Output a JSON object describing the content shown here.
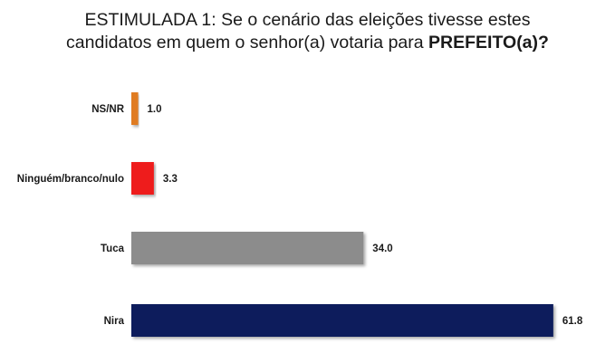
{
  "chart_data": {
    "type": "bar",
    "orientation": "horizontal",
    "title_line1": "ESTIMULADA 1: Se o cenário das eleições tivesse estes",
    "title_line2_prefix": "candidatos em quem o senhor(a) votaria para ",
    "title_line2_bold": "PREFEITO(a)?",
    "categories": [
      "NS/NR",
      "Ninguém/branco/nulo",
      "Tuca",
      "Nira"
    ],
    "values": [
      1.0,
      3.3,
      34.0,
      61.8
    ],
    "value_labels": [
      "1.0",
      "3.3",
      "34.0",
      "61.8"
    ],
    "colors": [
      "#e07b20",
      "#ee1c1c",
      "#8c8c8c",
      "#0f1f5c"
    ],
    "xlim": [
      0,
      65
    ],
    "grid": false,
    "legend": "none"
  }
}
